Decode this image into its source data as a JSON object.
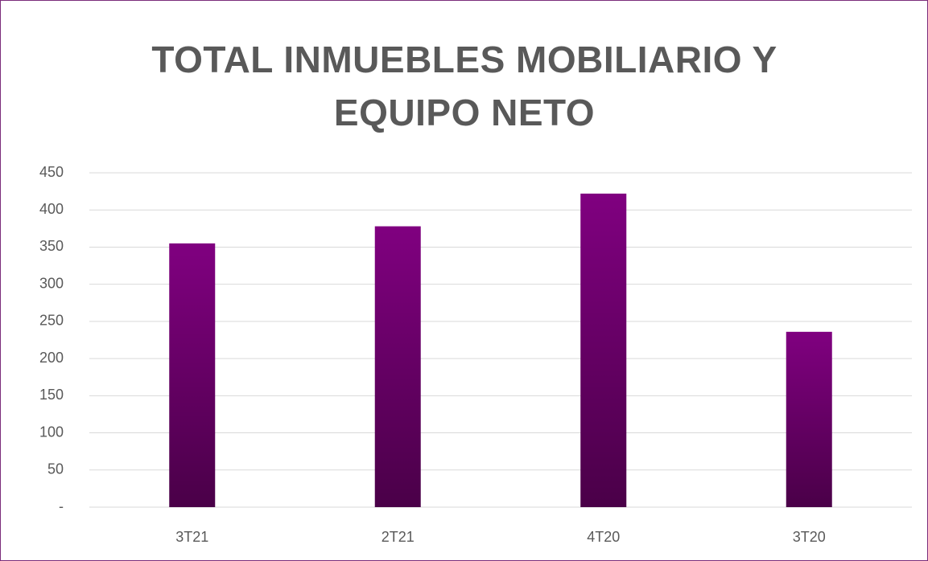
{
  "chart_data": {
    "type": "bar",
    "title": "TOTAL INMUEBLES MOBILIARIO Y EQUIPO NETO",
    "categories": [
      "3T21",
      "2T21",
      "4T20",
      "3T20"
    ],
    "values": [
      355,
      378,
      422,
      236
    ],
    "color": "#800080",
    "ylim": [
      0,
      450
    ],
    "yticks": [
      {
        "value": 0,
        "label": "-"
      },
      50,
      100,
      150,
      200,
      250,
      300,
      350,
      400,
      450
    ],
    "grid": true
  }
}
